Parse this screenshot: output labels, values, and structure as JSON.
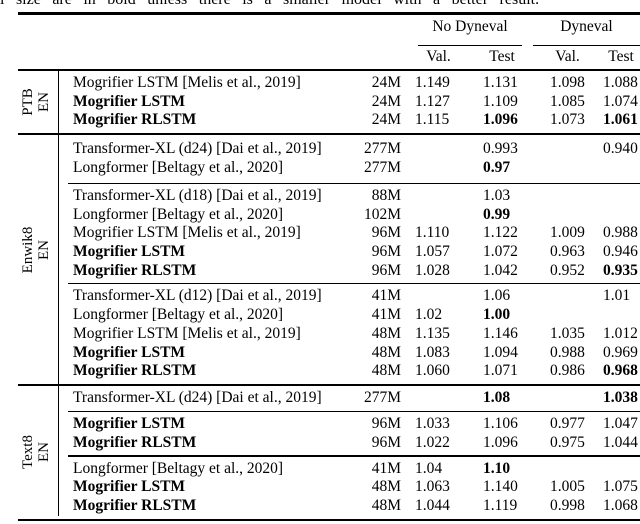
{
  "caption_fragment": "l size are in bold unless there is a smaller model with a better result.",
  "header": {
    "group1": "No Dyneval",
    "group2": "Dyneval",
    "sub": [
      "Val.",
      "Test",
      "Val.",
      "Test"
    ]
  },
  "sections": [
    {
      "dataset": "PTB",
      "lang": "EN",
      "blocks": [
        {
          "rows": [
            {
              "model": "Mogrifier LSTM [Melis et al., 2019]",
              "bold_model": false,
              "size": "24M",
              "vals": [
                "1.149",
                "1.131",
                "1.098",
                "1.088"
              ],
              "bold": [
                false,
                false,
                false,
                false
              ]
            },
            {
              "model": "Mogrifier LSTM",
              "bold_model": true,
              "size": "24M",
              "vals": [
                "1.127",
                "1.109",
                "1.085",
                "1.074"
              ],
              "bold": [
                false,
                false,
                false,
                false
              ]
            },
            {
              "model": "Mogrifier RLSTM",
              "bold_model": true,
              "size": "24M",
              "vals": [
                "1.115",
                "1.096",
                "1.073",
                "1.061"
              ],
              "bold": [
                false,
                true,
                false,
                true
              ]
            }
          ]
        }
      ]
    },
    {
      "dataset": "Enwik8",
      "lang": "EN",
      "blocks": [
        {
          "rows": [
            {
              "model": "Transformer-XL (d24) [Dai et al., 2019]",
              "bold_model": false,
              "size": "277M",
              "vals": [
                "",
                "0.993",
                "",
                "0.940"
              ],
              "bold": [
                false,
                false,
                false,
                false
              ]
            },
            {
              "model": "Longformer [Beltagy et al., 2020]",
              "bold_model": false,
              "size": "277M",
              "vals": [
                "",
                "0.97",
                "",
                ""
              ],
              "bold": [
                false,
                true,
                false,
                false
              ]
            }
          ]
        },
        {
          "rows": [
            {
              "model": "Transformer-XL (d18) [Dai et al., 2019]",
              "bold_model": false,
              "size": "88M",
              "vals": [
                "",
                "1.03",
                "",
                ""
              ],
              "bold": [
                false,
                false,
                false,
                false
              ]
            },
            {
              "model": "Longformer [Beltagy et al., 2020]",
              "bold_model": false,
              "size": "102M",
              "vals": [
                "",
                "0.99",
                "",
                ""
              ],
              "bold": [
                false,
                true,
                false,
                false
              ]
            },
            {
              "model": "Mogrifier LSTM [Melis et al., 2019]",
              "bold_model": false,
              "size": "96M",
              "vals": [
                "1.110",
                "1.122",
                "1.009",
                "0.988"
              ],
              "bold": [
                false,
                false,
                false,
                false
              ]
            },
            {
              "model": "Mogrifier LSTM",
              "bold_model": true,
              "size": "96M",
              "vals": [
                "1.057",
                "1.072",
                "0.963",
                "0.946"
              ],
              "bold": [
                false,
                false,
                false,
                false
              ]
            },
            {
              "model": "Mogrifier RLSTM",
              "bold_model": true,
              "size": "96M",
              "vals": [
                "1.028",
                "1.042",
                "0.952",
                "0.935"
              ],
              "bold": [
                false,
                false,
                false,
                true
              ]
            }
          ]
        },
        {
          "rows": [
            {
              "model": "Transformer-XL (d12) [Dai et al., 2019]",
              "bold_model": false,
              "size": "41M",
              "vals": [
                "",
                "1.06",
                "",
                "1.01"
              ],
              "bold": [
                false,
                false,
                false,
                false
              ]
            },
            {
              "model": "Longformer [Beltagy et al., 2020]",
              "bold_model": false,
              "size": "41M",
              "vals": [
                "1.02",
                "1.00",
                "",
                ""
              ],
              "bold": [
                false,
                true,
                false,
                false
              ]
            },
            {
              "model": "Mogrifier LSTM [Melis et al., 2019]",
              "bold_model": false,
              "size": "48M",
              "vals": [
                "1.135",
                "1.146",
                "1.035",
                "1.012"
              ],
              "bold": [
                false,
                false,
                false,
                false
              ]
            },
            {
              "model": "Mogrifier LSTM",
              "bold_model": true,
              "size": "48M",
              "vals": [
                "1.083",
                "1.094",
                "0.988",
                "0.969"
              ],
              "bold": [
                false,
                false,
                false,
                false
              ]
            },
            {
              "model": "Mogrifier RLSTM",
              "bold_model": true,
              "size": "48M",
              "vals": [
                "1.060",
                "1.071",
                "0.986",
                "0.968"
              ],
              "bold": [
                false,
                false,
                false,
                true
              ]
            }
          ]
        }
      ]
    },
    {
      "dataset": "Text8",
      "lang": "EN",
      "blocks": [
        {
          "rows": [
            {
              "model": "Transformer-XL (d24) [Dai et al., 2019]",
              "bold_model": false,
              "size": "277M",
              "vals": [
                "",
                "1.08",
                "",
                "1.038"
              ],
              "bold": [
                false,
                true,
                false,
                true
              ]
            }
          ]
        },
        {
          "rows": [
            {
              "model": "Mogrifier LSTM",
              "bold_model": true,
              "size": "96M",
              "vals": [
                "1.033",
                "1.106",
                "0.977",
                "1.047"
              ],
              "bold": [
                false,
                false,
                false,
                false
              ]
            },
            {
              "model": "Mogrifier RLSTM",
              "bold_model": true,
              "size": "96M",
              "vals": [
                "1.022",
                "1.096",
                "0.975",
                "1.044"
              ],
              "bold": [
                false,
                false,
                false,
                false
              ]
            }
          ]
        },
        {
          "rows": [
            {
              "model": "Longformer [Beltagy et al., 2020]",
              "bold_model": false,
              "size": "41M",
              "vals": [
                "1.04",
                "1.10",
                "",
                ""
              ],
              "bold": [
                false,
                true,
                false,
                false
              ]
            },
            {
              "model": "Mogrifier LSTM",
              "bold_model": true,
              "size": "48M",
              "vals": [
                "1.063",
                "1.140",
                "1.005",
                "1.075"
              ],
              "bold": [
                false,
                false,
                false,
                false
              ]
            },
            {
              "model": "Mogrifier RLSTM",
              "bold_model": true,
              "size": "48M",
              "vals": [
                "1.044",
                "1.119",
                "0.998",
                "1.068"
              ],
              "bold": [
                false,
                false,
                false,
                false
              ]
            }
          ]
        }
      ]
    }
  ]
}
